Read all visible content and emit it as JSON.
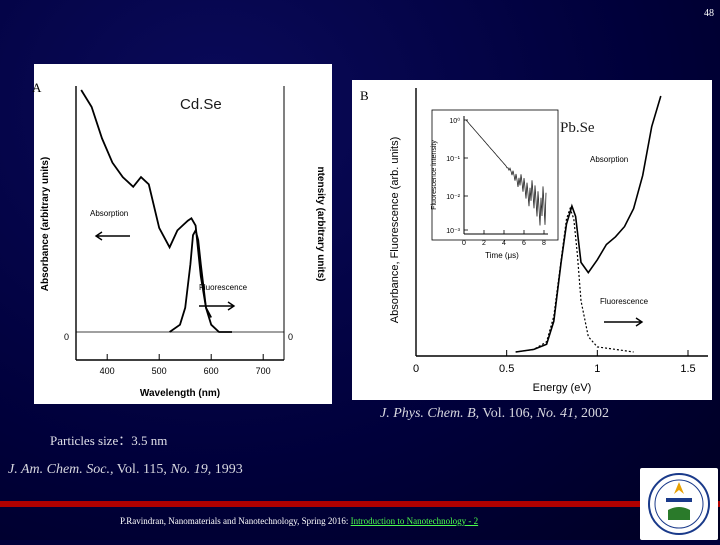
{
  "page_number": "48",
  "panel_a": {
    "letter": "A",
    "sample": "Cd.Se",
    "xlabel": "Wavelength (nm)",
    "ylabel_left": "Absorbance (arbitrary units)",
    "ylabel_right": "ntensity (arbitrary units)",
    "zero_label": "0",
    "zero_label_right": "0",
    "xticks": [
      "400",
      "500",
      "600",
      "700"
    ],
    "absorption_label": "Absorption",
    "fluorescence_label": "Fluorescence"
  },
  "panel_b": {
    "letter": "B",
    "sample": "Pb.Se",
    "xlabel": "Energy (eV)",
    "ylabel": "Absorbance, Fluorescence (arb. units)",
    "xticks": [
      "0",
      "0.5",
      "1",
      "1.5"
    ],
    "absorption_label": "Absorption",
    "fluorescence_label": "Fluorescence",
    "inset": {
      "ylabel": "Fluorescence intensity",
      "xlabel": "Time (μs)",
      "yticks": [
        "10⁰",
        "10⁻¹",
        "10⁻²",
        "10⁻³"
      ],
      "xticks": [
        "0",
        "2",
        "4",
        "6",
        "8"
      ]
    }
  },
  "chart_data": [
    {
      "type": "line",
      "title": "Cd.Se",
      "xlabel": "Wavelength (nm)",
      "ylabel": "Absorbance (arbitrary units)",
      "xlim": [
        340,
        740
      ],
      "series": [
        {
          "name": "Absorption",
          "x": [
            350,
            370,
            390,
            410,
            430,
            450,
            465,
            480,
            500,
            520,
            535,
            545,
            555,
            562,
            570,
            580,
            590,
            600
          ],
          "y": [
            1.0,
            0.93,
            0.8,
            0.7,
            0.64,
            0.6,
            0.64,
            0.61,
            0.43,
            0.35,
            0.42,
            0.44,
            0.46,
            0.47,
            0.44,
            0.23,
            0.1,
            0.06
          ]
        },
        {
          "name": "Fluorescence",
          "x": [
            520,
            540,
            550,
            560,
            565,
            570,
            575,
            580,
            590,
            600,
            615,
            640
          ],
          "y": [
            0.0,
            0.03,
            0.1,
            0.28,
            0.4,
            0.42,
            0.38,
            0.28,
            0.1,
            0.03,
            0.0,
            0.0
          ]
        }
      ]
    },
    {
      "type": "line",
      "title": "Pb.Se",
      "xlabel": "Energy (eV)",
      "ylabel": "Absorbance, Fluorescence (arb. units)",
      "xlim": [
        0,
        1.5
      ],
      "series": [
        {
          "name": "Absorption",
          "x": [
            0.55,
            0.65,
            0.72,
            0.76,
            0.8,
            0.83,
            0.86,
            0.88,
            0.91,
            0.95,
            1.0,
            1.05,
            1.1,
            1.15,
            1.2,
            1.25,
            1.3,
            1.35
          ],
          "y": [
            0.0,
            0.01,
            0.03,
            0.12,
            0.35,
            0.5,
            0.57,
            0.53,
            0.35,
            0.31,
            0.36,
            0.42,
            0.45,
            0.49,
            0.56,
            0.69,
            0.88,
            1.0
          ]
        },
        {
          "name": "Fluorescence",
          "x": [
            0.55,
            0.65,
            0.72,
            0.76,
            0.8,
            0.83,
            0.85,
            0.87,
            0.89,
            0.91,
            0.95,
            1.0,
            1.1,
            1.2
          ],
          "y": [
            0.0,
            0.01,
            0.04,
            0.14,
            0.36,
            0.52,
            0.56,
            0.52,
            0.38,
            0.2,
            0.06,
            0.02,
            0.01,
            0.0
          ]
        }
      ]
    }
  ],
  "caption_b": {
    "journal": "J. Phys. Chem. B,",
    "rest": " Vol. 106, ",
    "issue": "No. 41,",
    "year": " 2002"
  },
  "particle_size": "Particles size：3.5 nm",
  "caption_a": {
    "journal": "J. Am. Chem. Soc.,",
    "rest": " Vol. 115, ",
    "issue": "No. 19,",
    "year": " 1993"
  },
  "footer": {
    "text": "P.Ravindran, Nanomaterials and Nanotechnology, Spring 2016: ",
    "link": "Introduction to Nanotechnology - 2"
  }
}
